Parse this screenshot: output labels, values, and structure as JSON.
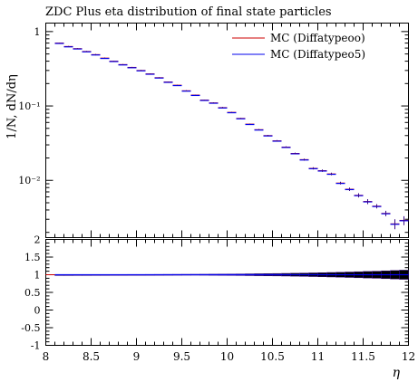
{
  "chart_data": {
    "type": "line",
    "title": "ZDC Plus eta distribution of final state particles",
    "xlabel": "η",
    "ylabel": "1/N, dN/dη",
    "xlim": [
      8,
      12
    ],
    "ylim": [
      0.0017,
      1.3
    ],
    "yscale": "log",
    "x_tick_labels": [
      "8",
      "8.5",
      "9",
      "9.5",
      "10",
      "10.5",
      "11",
      "11.5",
      "12"
    ],
    "y_tick_labels": [
      "1",
      "10⁻¹",
      "10⁻²"
    ],
    "legend_position": "top-right",
    "colors": {
      "mc00": "#cc0000",
      "mc05": "#0000ee",
      "markers": "#3b0b8a",
      "band": "#000000"
    },
    "series": [
      {
        "name": "MC (Diffatypeoo)"
      },
      {
        "name": "MC (Diffatypeo5)"
      }
    ],
    "bin_width": 0.1,
    "x": [
      8.15,
      8.25,
      8.35,
      8.45,
      8.55,
      8.65,
      8.75,
      8.85,
      8.95,
      9.05,
      9.15,
      9.25,
      9.35,
      9.45,
      9.55,
      9.65,
      9.75,
      9.85,
      9.95,
      10.05,
      10.15,
      10.25,
      10.35,
      10.45,
      10.55,
      10.65,
      10.75,
      10.85,
      10.95,
      11.05,
      11.15,
      11.25,
      11.35,
      11.45,
      11.55,
      11.65,
      11.75,
      11.85,
      11.95
    ],
    "y": [
      0.7,
      0.63,
      0.59,
      0.54,
      0.49,
      0.44,
      0.4,
      0.36,
      0.33,
      0.3,
      0.27,
      0.24,
      0.21,
      0.19,
      0.16,
      0.14,
      0.12,
      0.11,
      0.095,
      0.082,
      0.068,
      0.057,
      0.048,
      0.04,
      0.034,
      0.028,
      0.023,
      0.019,
      0.0145,
      0.0135,
      0.0122,
      0.0092,
      0.0076,
      0.0063,
      0.0052,
      0.0045,
      0.0036,
      0.0026,
      0.0029
    ],
    "y_err": [
      0.01,
      0.01,
      0.01,
      0.01,
      0.01,
      0.008,
      0.007,
      0.006,
      0.005,
      0.005,
      0.004,
      0.004,
      0.003,
      0.003,
      0.003,
      0.002,
      0.002,
      0.002,
      0.002,
      0.0015,
      0.0012,
      0.001,
      0.001,
      0.0009,
      0.0008,
      0.0007,
      0.0006,
      0.0006,
      0.0005,
      0.0005,
      0.0005,
      0.0004,
      0.0004,
      0.0004,
      0.0004,
      0.0003,
      0.0003,
      0.0004,
      0.0004
    ],
    "ratio": {
      "ylim": [
        -1,
        2
      ],
      "y_tick_labels": [
        "2",
        "1.5",
        "1",
        "0.5",
        "0",
        "-0.5",
        "-1"
      ],
      "values": [
        1.0,
        1.0,
        1.0,
        1.0,
        1.0,
        1.0,
        1.0,
        1.0,
        1.0,
        1.0,
        1.0,
        1.0,
        1.0,
        1.0,
        1.0,
        1.0,
        1.0,
        1.0,
        1.0,
        1.0,
        1.0,
        1.0,
        1.0,
        1.0,
        1.0,
        1.0,
        1.0,
        1.0,
        1.0,
        1.0,
        1.0,
        1.0,
        1.0,
        1.0,
        1.0,
        1.0,
        1.0,
        1.0,
        1.0
      ],
      "band": [
        0.003,
        0.003,
        0.004,
        0.004,
        0.005,
        0.005,
        0.006,
        0.006,
        0.007,
        0.007,
        0.008,
        0.009,
        0.01,
        0.011,
        0.012,
        0.013,
        0.014,
        0.016,
        0.018,
        0.02,
        0.022,
        0.025,
        0.028,
        0.031,
        0.034,
        0.038,
        0.042,
        0.047,
        0.052,
        0.058,
        0.064,
        0.07,
        0.077,
        0.085,
        0.093,
        0.1,
        0.11,
        0.12,
        0.13
      ]
    }
  }
}
